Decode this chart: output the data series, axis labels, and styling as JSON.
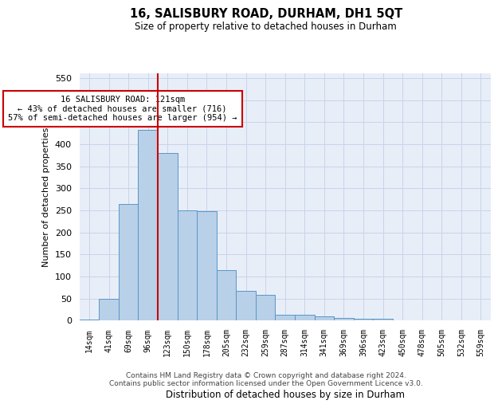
{
  "title": "16, SALISBURY ROAD, DURHAM, DH1 5QT",
  "subtitle": "Size of property relative to detached houses in Durham",
  "xlabel": "Distribution of detached houses by size in Durham",
  "ylabel": "Number of detached properties",
  "categories": [
    "14sqm",
    "41sqm",
    "69sqm",
    "96sqm",
    "123sqm",
    "150sqm",
    "178sqm",
    "205sqm",
    "232sqm",
    "259sqm",
    "287sqm",
    "314sqm",
    "341sqm",
    "369sqm",
    "396sqm",
    "423sqm",
    "450sqm",
    "478sqm",
    "505sqm",
    "532sqm",
    "559sqm"
  ],
  "values": [
    3,
    50,
    265,
    432,
    380,
    250,
    248,
    115,
    68,
    59,
    14,
    13,
    9,
    6,
    5,
    5,
    0,
    0,
    0,
    0,
    1
  ],
  "bar_color": "#b8d0e8",
  "bar_edge_color": "#5a96c8",
  "vline_x_idx": 3,
  "vline_color": "#cc0000",
  "annotation_text": "16 SALISBURY ROAD: 121sqm\n← 43% of detached houses are smaller (716)\n57% of semi-detached houses are larger (954) →",
  "annotation_box_color": "#ffffff",
  "annotation_box_edge": "#cc0000",
  "ylim": [
    0,
    560
  ],
  "yticks": [
    0,
    50,
    100,
    150,
    200,
    250,
    300,
    350,
    400,
    450,
    500,
    550
  ],
  "grid_color": "#c8d4e8",
  "bg_color": "#e8eef8",
  "footer_line1": "Contains HM Land Registry data © Crown copyright and database right 2024.",
  "footer_line2": "Contains public sector information licensed under the Open Government Licence v3.0."
}
